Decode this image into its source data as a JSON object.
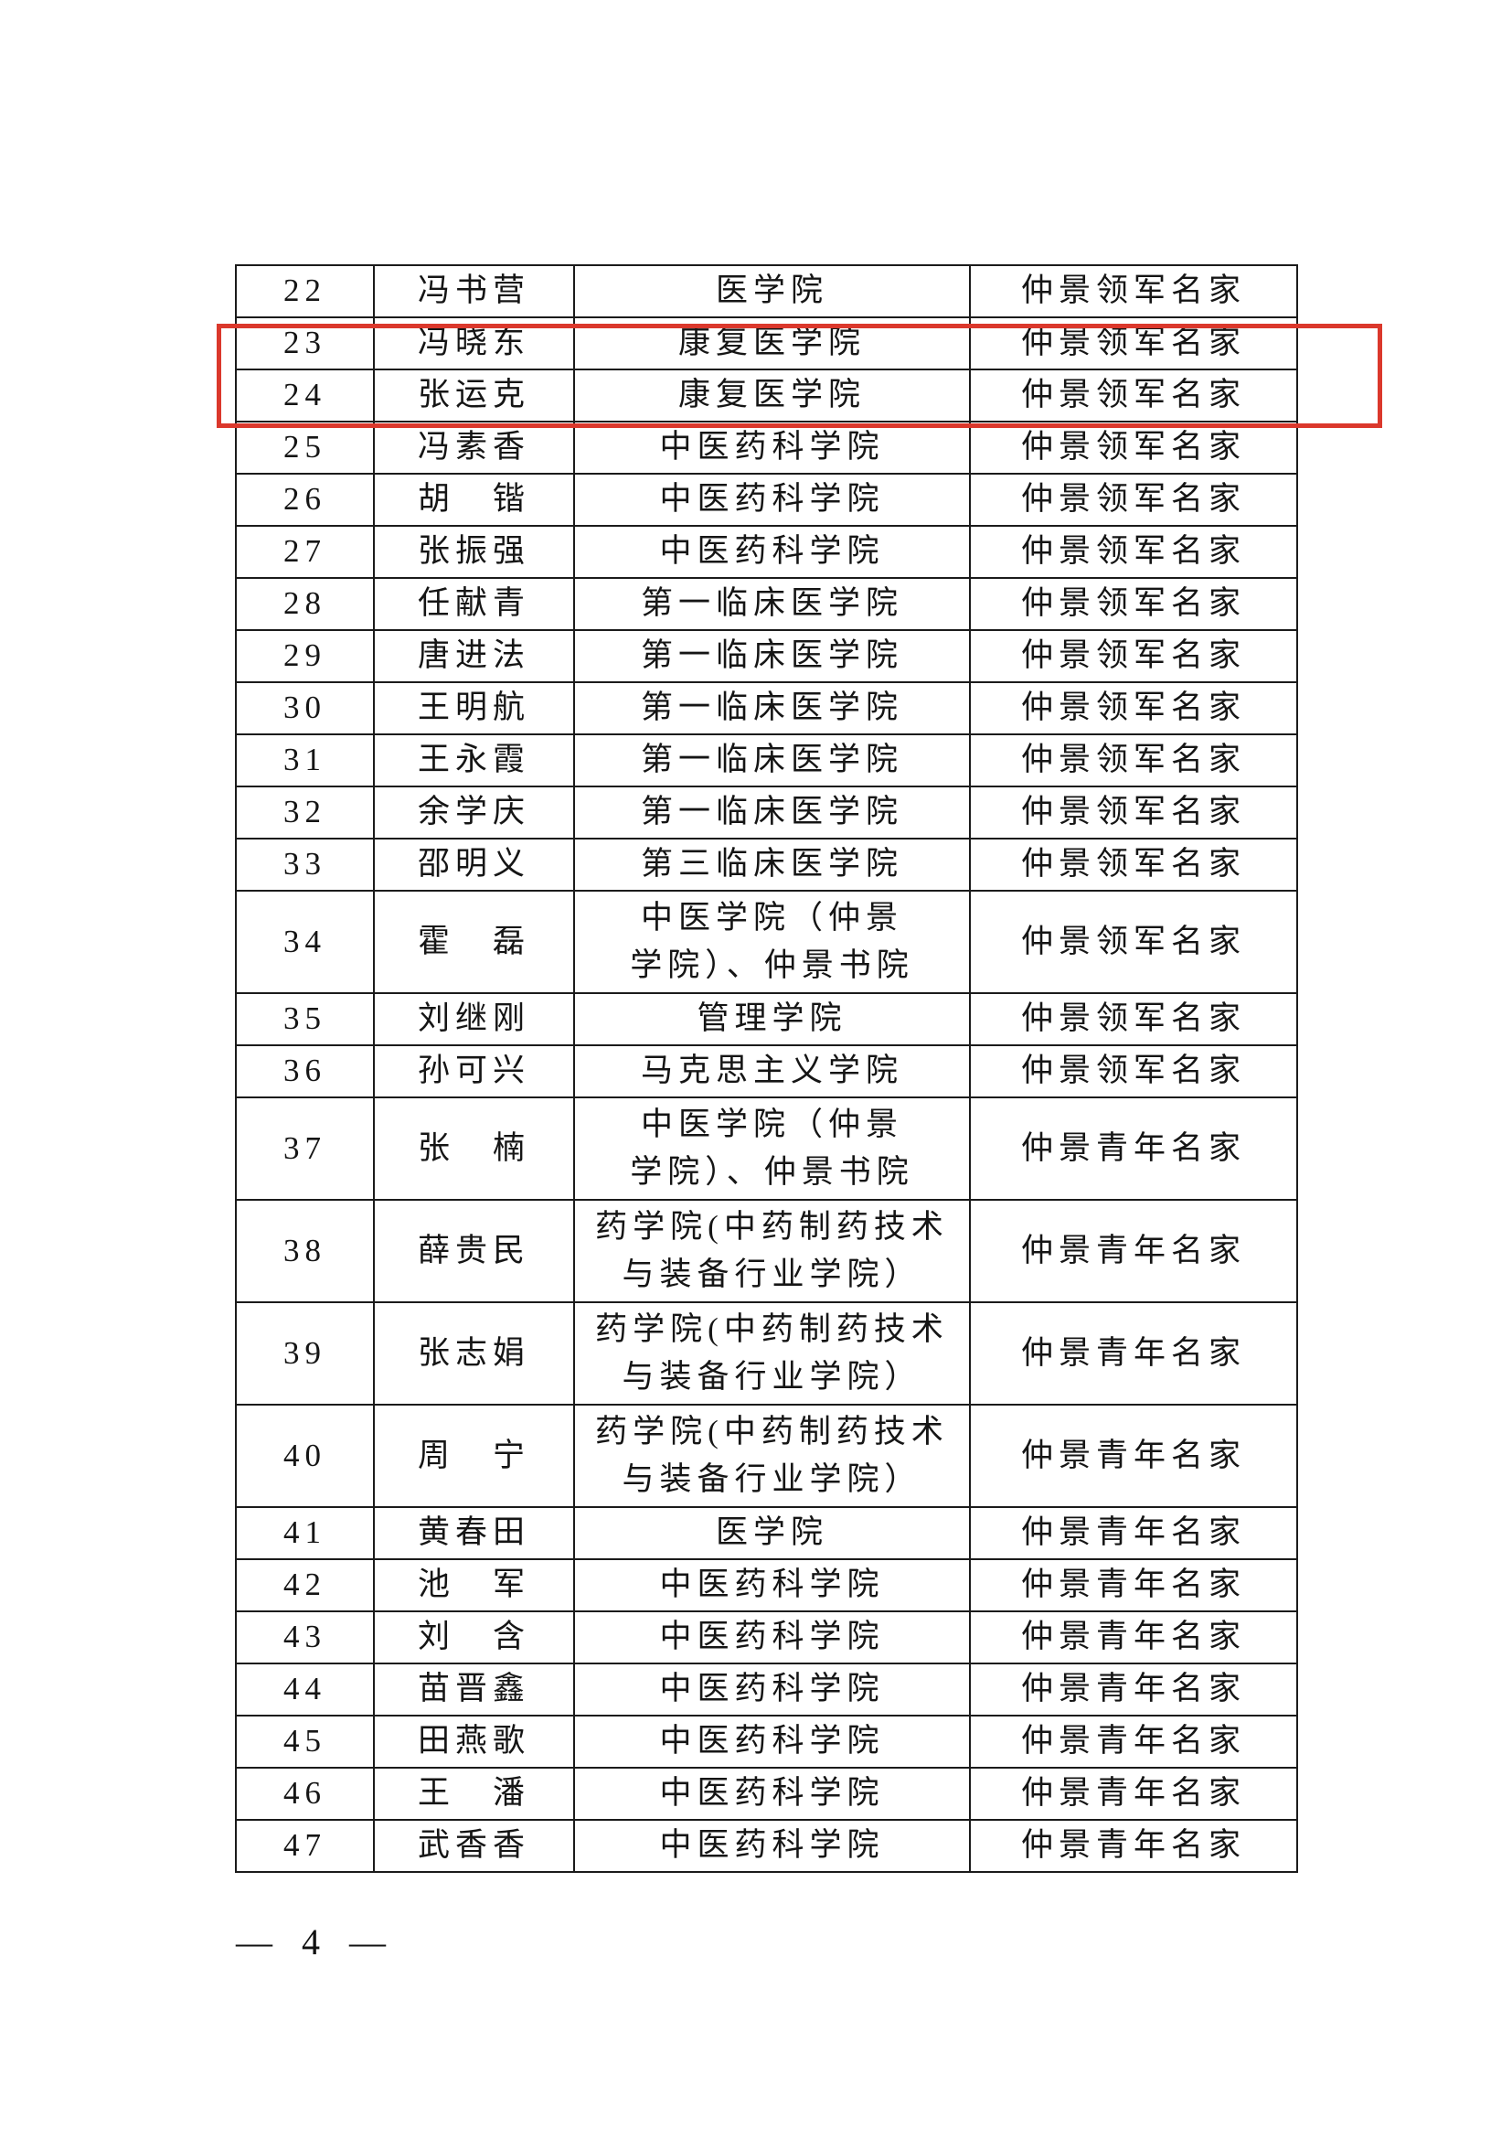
{
  "page": {
    "number_label": "— 4 —"
  },
  "highlight": {
    "color": "#db382c",
    "highlighted_row_numbers": [
      "23",
      "24"
    ]
  },
  "table": {
    "rows": [
      {
        "no": "22",
        "name": "冯书营",
        "college": "医学院",
        "title": "仲景领军名家",
        "tall": false,
        "highlighted": false
      },
      {
        "no": "23",
        "name": "冯晓东",
        "college": "康复医学院",
        "title": "仲景领军名家",
        "tall": false,
        "highlighted": true
      },
      {
        "no": "24",
        "name": "张运克",
        "college": "康复医学院",
        "title": "仲景领军名家",
        "tall": false,
        "highlighted": true
      },
      {
        "no": "25",
        "name": "冯素香",
        "college": "中医药科学院",
        "title": "仲景领军名家",
        "tall": false,
        "highlighted": false
      },
      {
        "no": "26",
        "name": "胡　锴",
        "college": "中医药科学院",
        "title": "仲景领军名家",
        "tall": false,
        "highlighted": false
      },
      {
        "no": "27",
        "name": "张振强",
        "college": "中医药科学院",
        "title": "仲景领军名家",
        "tall": false,
        "highlighted": false
      },
      {
        "no": "28",
        "name": "任献青",
        "college": "第一临床医学院",
        "title": "仲景领军名家",
        "tall": false,
        "highlighted": false
      },
      {
        "no": "29",
        "name": "唐进法",
        "college": "第一临床医学院",
        "title": "仲景领军名家",
        "tall": false,
        "highlighted": false
      },
      {
        "no": "30",
        "name": "王明航",
        "college": "第一临床医学院",
        "title": "仲景领军名家",
        "tall": false,
        "highlighted": false
      },
      {
        "no": "31",
        "name": "王永霞",
        "college": "第一临床医学院",
        "title": "仲景领军名家",
        "tall": false,
        "highlighted": false
      },
      {
        "no": "32",
        "name": "余学庆",
        "college": "第一临床医学院",
        "title": "仲景领军名家",
        "tall": false,
        "highlighted": false
      },
      {
        "no": "33",
        "name": "邵明义",
        "college": "第三临床医学院",
        "title": "仲景领军名家",
        "tall": false,
        "highlighted": false
      },
      {
        "no": "34",
        "name": "霍　磊",
        "college": "中医学院（仲景\n学院）、仲景书院",
        "title": "仲景领军名家",
        "tall": true,
        "highlighted": false
      },
      {
        "no": "35",
        "name": "刘继刚",
        "college": "管理学院",
        "title": "仲景领军名家",
        "tall": false,
        "highlighted": false
      },
      {
        "no": "36",
        "name": "孙可兴",
        "college": "马克思主义学院",
        "title": "仲景领军名家",
        "tall": false,
        "highlighted": false
      },
      {
        "no": "37",
        "name": "张　楠",
        "college": "中医学院（仲景\n学院）、仲景书院",
        "title": "仲景青年名家",
        "tall": true,
        "highlighted": false
      },
      {
        "no": "38",
        "name": "薛贵民",
        "college": "药学院(中药制药技术\n与装备行业学院）",
        "title": "仲景青年名家",
        "tall": true,
        "highlighted": false
      },
      {
        "no": "39",
        "name": "张志娟",
        "college": "药学院(中药制药技术\n与装备行业学院）",
        "title": "仲景青年名家",
        "tall": true,
        "highlighted": false
      },
      {
        "no": "40",
        "name": "周　宁",
        "college": "药学院(中药制药技术\n与装备行业学院）",
        "title": "仲景青年名家",
        "tall": true,
        "highlighted": false
      },
      {
        "no": "41",
        "name": "黄春田",
        "college": "医学院",
        "title": "仲景青年名家",
        "tall": false,
        "highlighted": false
      },
      {
        "no": "42",
        "name": "池　军",
        "college": "中医药科学院",
        "title": "仲景青年名家",
        "tall": false,
        "highlighted": false
      },
      {
        "no": "43",
        "name": "刘　含",
        "college": "中医药科学院",
        "title": "仲景青年名家",
        "tall": false,
        "highlighted": false
      },
      {
        "no": "44",
        "name": "苗晋鑫",
        "college": "中医药科学院",
        "title": "仲景青年名家",
        "tall": false,
        "highlighted": false
      },
      {
        "no": "45",
        "name": "田燕歌",
        "college": "中医药科学院",
        "title": "仲景青年名家",
        "tall": false,
        "highlighted": false
      },
      {
        "no": "46",
        "name": "王　潘",
        "college": "中医药科学院",
        "title": "仲景青年名家",
        "tall": false,
        "highlighted": false
      },
      {
        "no": "47",
        "name": "武香香",
        "college": "中医药科学院",
        "title": "仲景青年名家",
        "tall": false,
        "highlighted": false
      }
    ]
  }
}
